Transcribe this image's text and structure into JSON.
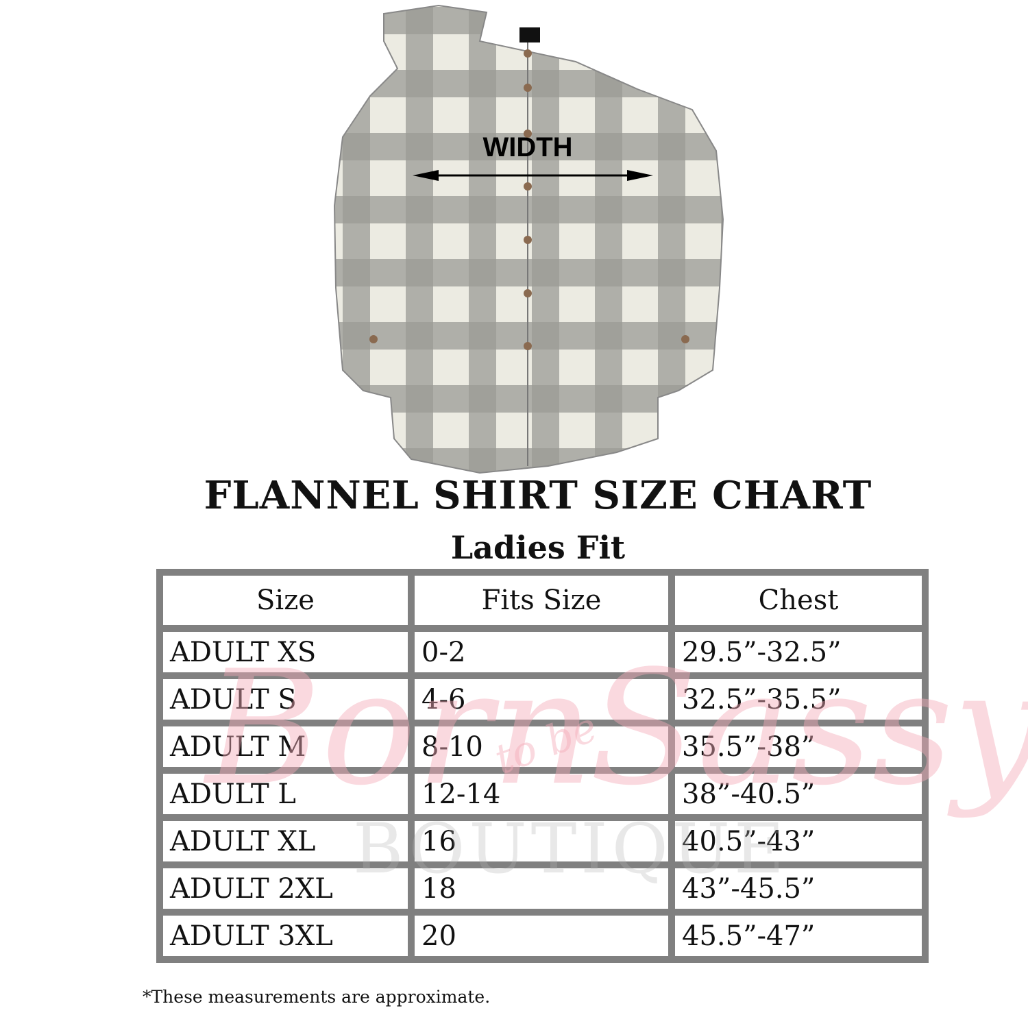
{
  "product_image": {
    "measure_label": "WIDTH",
    "colors": {
      "plaid_dark": "#7e7e7a",
      "plaid_light": "#ecebe2",
      "button": "#8a6a50"
    }
  },
  "header": {
    "title": "FLANNEL SHIRT SIZE CHART",
    "subtitle": "Ladies Fit"
  },
  "table": {
    "columns": [
      "Size",
      "Fits Size",
      "Chest"
    ],
    "rows": [
      [
        "ADULT XS",
        "0-2",
        "29.5”-32.5”"
      ],
      [
        "ADULT S",
        "4-6",
        "32.5”-35.5”"
      ],
      [
        "ADULT M",
        "8-10",
        "35.5”-38”"
      ],
      [
        "ADULT L",
        "12-14",
        "38”-40.5”"
      ],
      [
        "ADULT XL",
        "16",
        "40.5”-43”"
      ],
      [
        "ADULT 2XL",
        "18",
        "43”-45.5”"
      ],
      [
        "ADULT 3XL",
        "20",
        "45.5”-47”"
      ]
    ],
    "border_color": "#808080"
  },
  "footnote": "*These measurements are approximate.",
  "watermark": {
    "script": "Born",
    "script2": "Sassy",
    "small": "to be",
    "sub": "BOUTIQUE",
    "color": "#f5aab9"
  }
}
